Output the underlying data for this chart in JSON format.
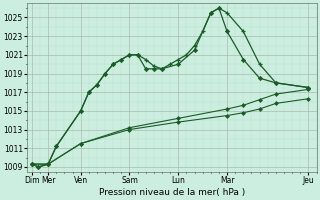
{
  "background_color": "#cceee0",
  "grid_color_major": "#aabbaa",
  "grid_color_minor": "#bbddcc",
  "line_color": "#1a5c28",
  "xlabel": "Pression niveau de la mer( hPa )",
  "ylim": [
    1008.5,
    1026.5
  ],
  "yticks": [
    1009,
    1011,
    1013,
    1015,
    1017,
    1019,
    1021,
    1023,
    1025
  ],
  "xtick_pos": [
    0,
    1,
    3,
    6,
    9,
    12,
    17
  ],
  "xtick_labels": [
    "Dim",
    "Mer",
    "Ven",
    "Sam",
    "Lun",
    "Mar",
    "Jeu"
  ],
  "xlim": [
    -0.3,
    17.5
  ],
  "series1_x": [
    0,
    0.4,
    1,
    1.5,
    3,
    3.5,
    4,
    4.5,
    5,
    5.5,
    6,
    6.5,
    7,
    7.5,
    8,
    8.5,
    9,
    9.5,
    10,
    10.5,
    11,
    11.5,
    12,
    13,
    14,
    15,
    17
  ],
  "series1_y": [
    1009.3,
    1009.0,
    1009.3,
    1011.2,
    1015.0,
    1017.0,
    1017.8,
    1019.0,
    1020.0,
    1020.5,
    1021.0,
    1021.0,
    1020.5,
    1019.8,
    1019.5,
    1020.0,
    1020.5,
    1021.0,
    1022.0,
    1023.5,
    1025.5,
    1026.0,
    1025.5,
    1023.5,
    1020.0,
    1018.0,
    1017.5
  ],
  "series2_x": [
    0,
    0.4,
    1,
    1.5,
    3,
    3.5,
    4,
    4.5,
    5,
    5.5,
    6,
    6.5,
    7,
    7.5,
    8,
    9,
    10,
    11,
    11.5,
    12,
    13,
    14,
    15,
    17
  ],
  "series2_y": [
    1009.3,
    1009.0,
    1009.3,
    1011.2,
    1015.0,
    1017.0,
    1017.8,
    1019.0,
    1020.0,
    1020.5,
    1021.0,
    1021.0,
    1019.5,
    1019.5,
    1019.5,
    1020.0,
    1021.5,
    1025.5,
    1026.0,
    1023.5,
    1020.5,
    1018.5,
    1018.0,
    1017.5
  ],
  "series3_x": [
    0,
    1,
    3,
    6,
    9,
    12,
    13,
    14,
    15,
    17
  ],
  "series3_y": [
    1009.3,
    1009.3,
    1011.5,
    1013.0,
    1013.8,
    1014.5,
    1014.8,
    1015.2,
    1015.8,
    1016.3
  ],
  "series4_x": [
    0,
    1,
    3,
    6,
    9,
    12,
    13,
    14,
    15,
    17
  ],
  "series4_y": [
    1009.3,
    1009.3,
    1011.5,
    1013.2,
    1014.2,
    1015.2,
    1015.6,
    1016.2,
    1016.8,
    1017.3
  ],
  "figsize": [
    3.2,
    2.0
  ],
  "dpi": 100
}
